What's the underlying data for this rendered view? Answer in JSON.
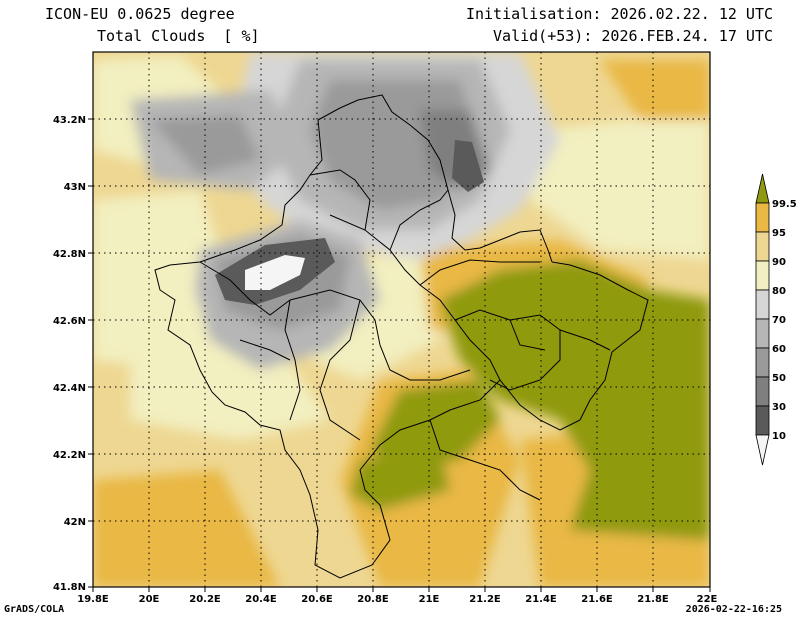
{
  "header": {
    "model": "ICON-EU 0.0625 degree",
    "field": "Total Clouds  [ %]",
    "init": "Initialisation: 2026.02.22. 12 UTC",
    "valid": "Valid(+53): 2026.FEB.24. 17 UTC"
  },
  "footer": {
    "credit": "GrADS/COLA",
    "timestamp": "2026-02-22-16:25"
  },
  "map": {
    "lon_range": [
      19.8,
      22.0
    ],
    "lat_range": [
      41.8,
      43.4
    ],
    "x_ticks": [
      "19.8E",
      "20E",
      "20.2E",
      "20.4E",
      "20.6E",
      "20.8E",
      "21E",
      "21.2E",
      "21.4E",
      "21.6E",
      "21.8E",
      "22E"
    ],
    "y_ticks": [
      "41.8N",
      "42N",
      "42.2N",
      "42.4N",
      "42.6N",
      "42.8N",
      "43N",
      "43.2N"
    ],
    "grid": "dotted",
    "borders": "Kosovo municipalities and neighbouring countries"
  },
  "colorbar": {
    "levels": [
      "99.5",
      "95",
      "90",
      "80",
      "70",
      "60",
      "50",
      "30",
      "10"
    ],
    "colors": {
      "below_10": "#f5f5f5",
      "10-30": "#5a5a5a",
      "30-50": "#7f7f7f",
      "50-60": "#9a9a9a",
      "60-70": "#b6b6b6",
      "70-80": "#d6d6d6",
      "80-90": "#f2efc0",
      "90-95": "#eed792",
      "95-99.5": "#e9b845",
      "above_99.5": "#8f9a10"
    }
  }
}
